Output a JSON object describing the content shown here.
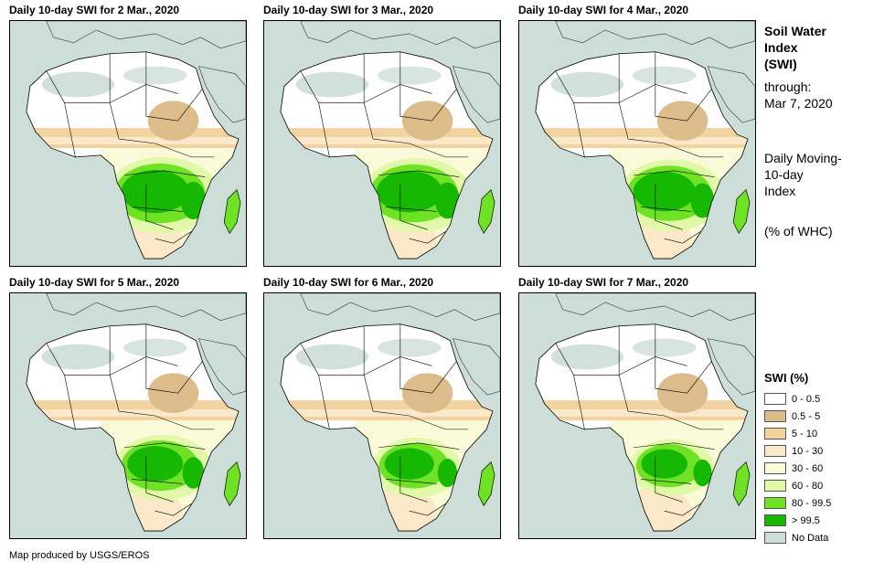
{
  "panels": [
    {
      "title": "Daily 10-day  SWI for 2 Mar., 2020",
      "wet_fraction": 0.85
    },
    {
      "title": "Daily 10-day  SWI for 3 Mar., 2020",
      "wet_fraction": 0.82
    },
    {
      "title": "Daily 10-day  SWI for 4 Mar., 2020",
      "wet_fraction": 0.78
    },
    {
      "title": "Daily 10-day  SWI for 5 Mar., 2020",
      "wet_fraction": 0.7
    },
    {
      "title": "Daily 10-day  SWI for 6 Mar., 2020",
      "wet_fraction": 0.62
    },
    {
      "title": "Daily 10-day  SWI for 7 Mar., 2020",
      "wet_fraction": 0.58
    }
  ],
  "side": {
    "title_1": "Soil Water",
    "title_2": "Index",
    "title_3": "(SWI)",
    "through": "through:",
    "through_date": "Mar 7, 2020",
    "index_1": "Daily Moving-",
    "index_2": "10-day",
    "index_3": "Index",
    "whc": "(% of WHC)"
  },
  "legend": {
    "title": "SWI (%)",
    "items": [
      {
        "label": "0 - 0.5",
        "color": "#ffffff"
      },
      {
        "label": "0.5 - 5",
        "color": "#dcbc8a"
      },
      {
        "label": "5 - 10",
        "color": "#f1d3a1"
      },
      {
        "label": "10 - 30",
        "color": "#fbe8c8"
      },
      {
        "label": "30 - 60",
        "color": "#fbfad8"
      },
      {
        "label": "60 - 80",
        "color": "#e0f8a8"
      },
      {
        "label": "80 - 99.5",
        "color": "#6fe225"
      },
      {
        "label": "> 99.5",
        "color": "#17b803"
      },
      {
        "label": "No Data",
        "color": "#cdddd8"
      }
    ]
  },
  "footer": "Map produced by USGS/EROS"
}
